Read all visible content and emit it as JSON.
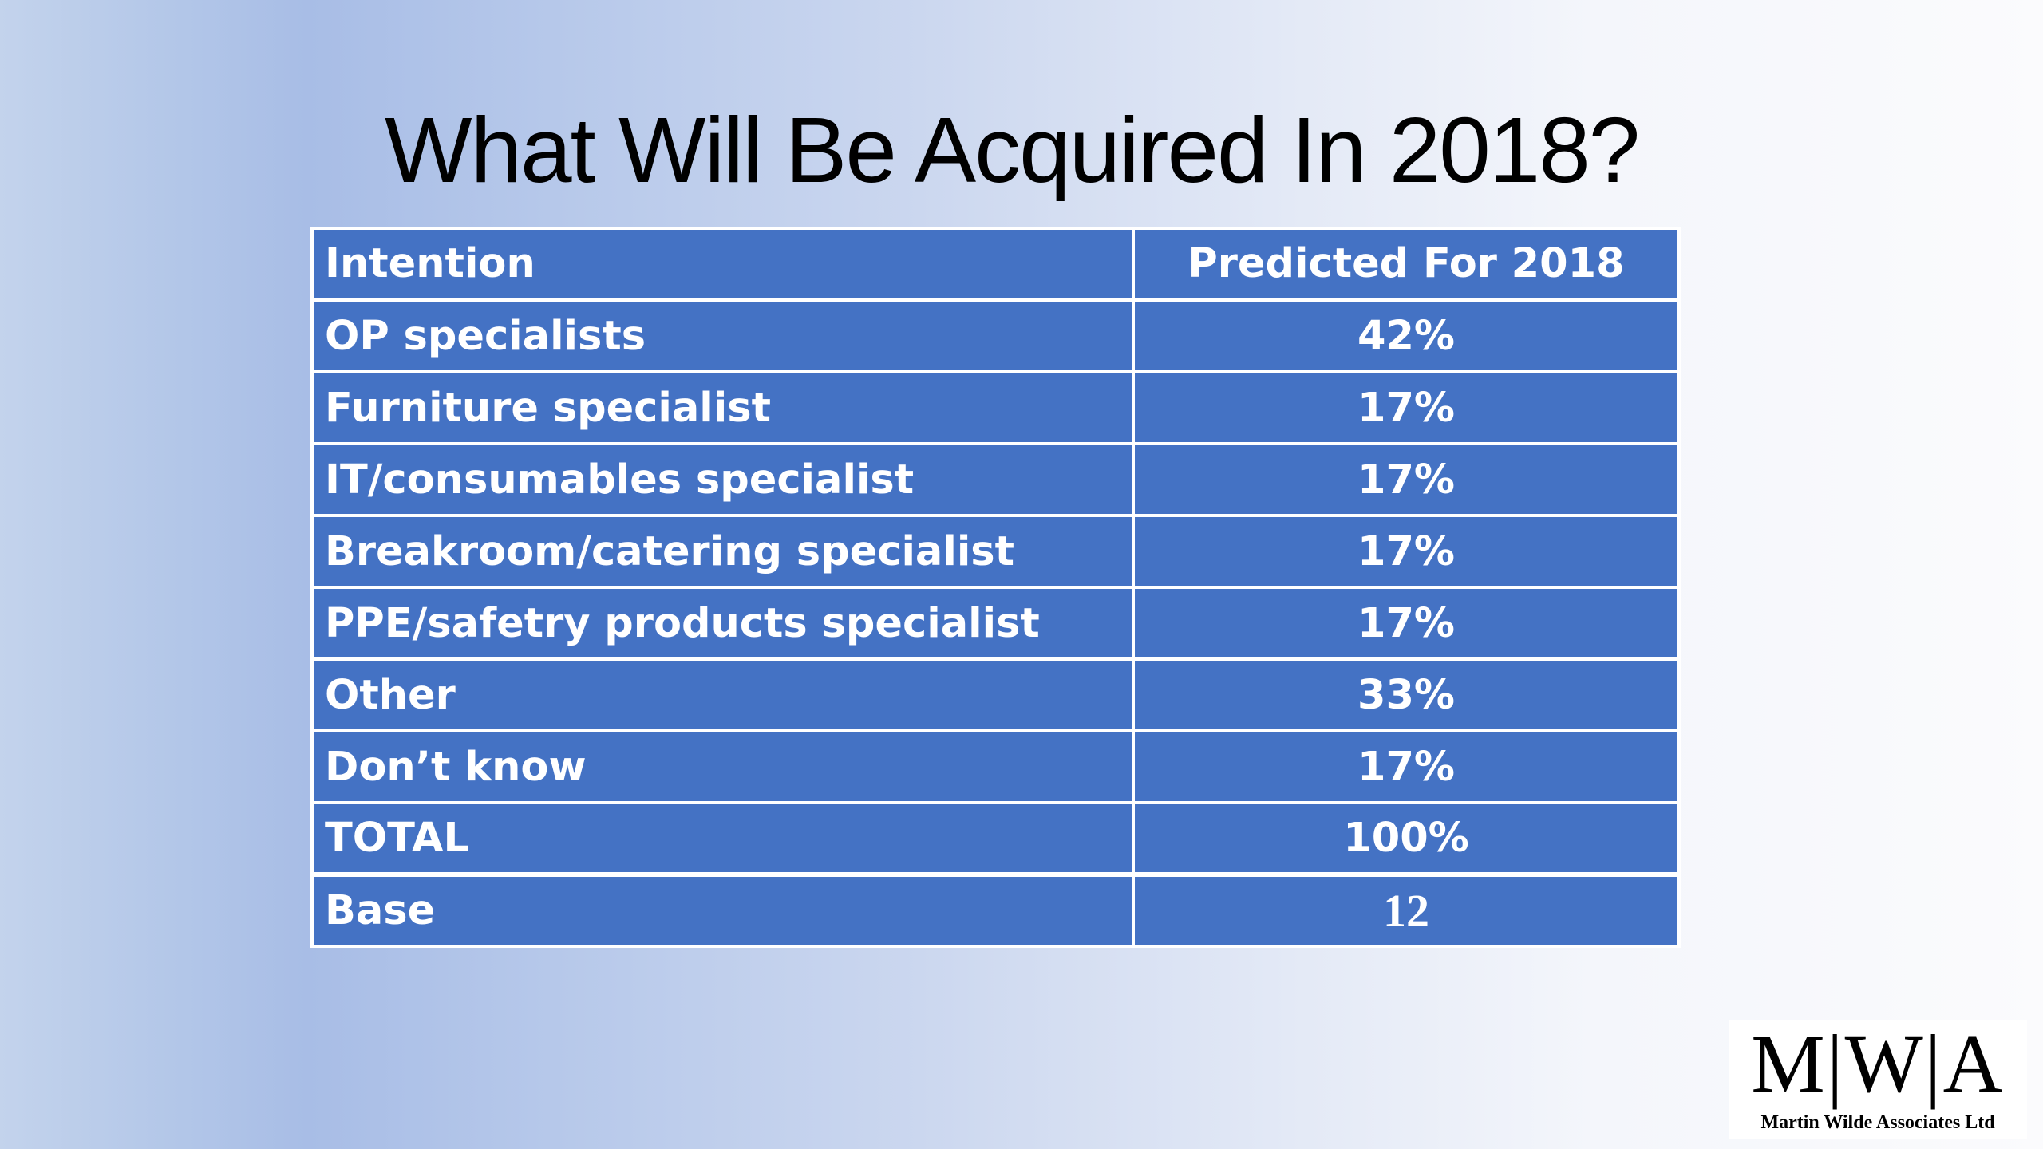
{
  "slide": {
    "title": "What Will Be Acquired In 2018?"
  },
  "table": {
    "headers": [
      "Intention",
      "Predicted For 2018"
    ],
    "rows": [
      {
        "intention": "OP specialists",
        "value": "42%"
      },
      {
        "intention": "Furniture specialist",
        "value": "17%"
      },
      {
        "intention": "IT/consumables specialist",
        "value": "17%"
      },
      {
        "intention": "Breakroom/catering specialist",
        "value": "17%"
      },
      {
        "intention": "PPE/safetry products specialist",
        "value": "17%"
      },
      {
        "intention": "Other",
        "value": "33%"
      },
      {
        "intention": "Don’t know",
        "value": "17%"
      },
      {
        "intention": "TOTAL",
        "value": "100%"
      },
      {
        "intention": "Base",
        "value": "12"
      }
    ]
  },
  "logo": {
    "mark": "M|W|A",
    "company": "Martin Wilde Associates Ltd"
  },
  "colors": {
    "table_fill": "#4472c4",
    "table_text": "#ffffff",
    "title_text": "#000000"
  }
}
